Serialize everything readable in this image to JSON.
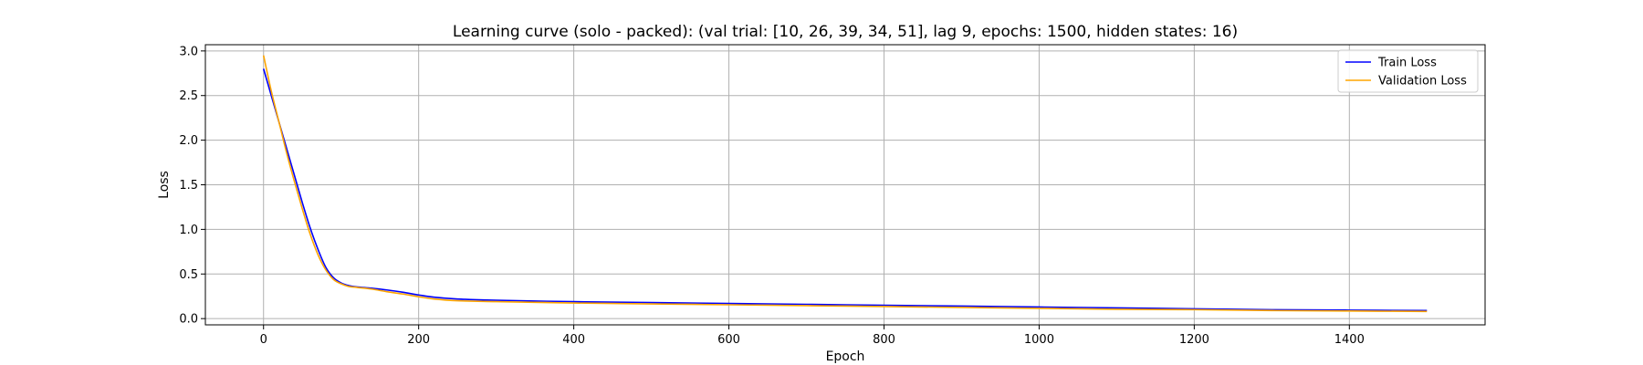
{
  "chart_data": {
    "type": "line",
    "title": "Learning curve (solo - packed): (val trial: [10, 26, 39, 34, 51], lag 9, epochs: 1500, hidden states: 16)",
    "xlabel": "Epoch",
    "ylabel": "Loss",
    "xlim": [
      -75,
      1575
    ],
    "ylim": [
      -0.07,
      3.07
    ],
    "xticks": [
      0,
      200,
      400,
      600,
      800,
      1000,
      1200,
      1400
    ],
    "yticks": [
      0.0,
      0.5,
      1.0,
      1.5,
      2.0,
      2.5,
      3.0
    ],
    "xtick_labels": [
      "0",
      "200",
      "400",
      "600",
      "800",
      "1000",
      "1200",
      "1400"
    ],
    "ytick_labels": [
      "0.0",
      "0.5",
      "1.0",
      "1.5",
      "2.0",
      "2.5",
      "3.0"
    ],
    "grid": true,
    "legend_position": "top-right",
    "series": [
      {
        "name": "Train Loss",
        "color": "#0000ff",
        "x": [
          0,
          10,
          20,
          30,
          40,
          50,
          60,
          70,
          80,
          90,
          100,
          110,
          120,
          140,
          160,
          180,
          200,
          220,
          250,
          300,
          400,
          500,
          600,
          700,
          800,
          900,
          1000,
          1100,
          1200,
          1300,
          1400,
          1500
        ],
        "y": [
          2.8,
          2.5,
          2.2,
          1.9,
          1.6,
          1.3,
          1.02,
          0.78,
          0.58,
          0.46,
          0.4,
          0.37,
          0.355,
          0.34,
          0.32,
          0.295,
          0.265,
          0.24,
          0.22,
          0.205,
          0.19,
          0.18,
          0.17,
          0.16,
          0.15,
          0.14,
          0.13,
          0.12,
          0.11,
          0.1,
          0.095,
          0.09
        ]
      },
      {
        "name": "Validation Loss",
        "color": "#ffa500",
        "x": [
          0,
          10,
          20,
          30,
          40,
          50,
          60,
          70,
          80,
          90,
          100,
          110,
          120,
          140,
          160,
          180,
          200,
          220,
          250,
          300,
          400,
          500,
          600,
          700,
          800,
          900,
          1000,
          1100,
          1200,
          1300,
          1400,
          1500
        ],
        "y": [
          2.95,
          2.55,
          2.2,
          1.85,
          1.53,
          1.23,
          0.95,
          0.72,
          0.55,
          0.44,
          0.39,
          0.36,
          0.35,
          0.33,
          0.3,
          0.275,
          0.245,
          0.22,
          0.2,
          0.19,
          0.175,
          0.165,
          0.155,
          0.145,
          0.135,
          0.125,
          0.115,
          0.105,
          0.1,
          0.09,
          0.085,
          0.08
        ]
      }
    ]
  }
}
